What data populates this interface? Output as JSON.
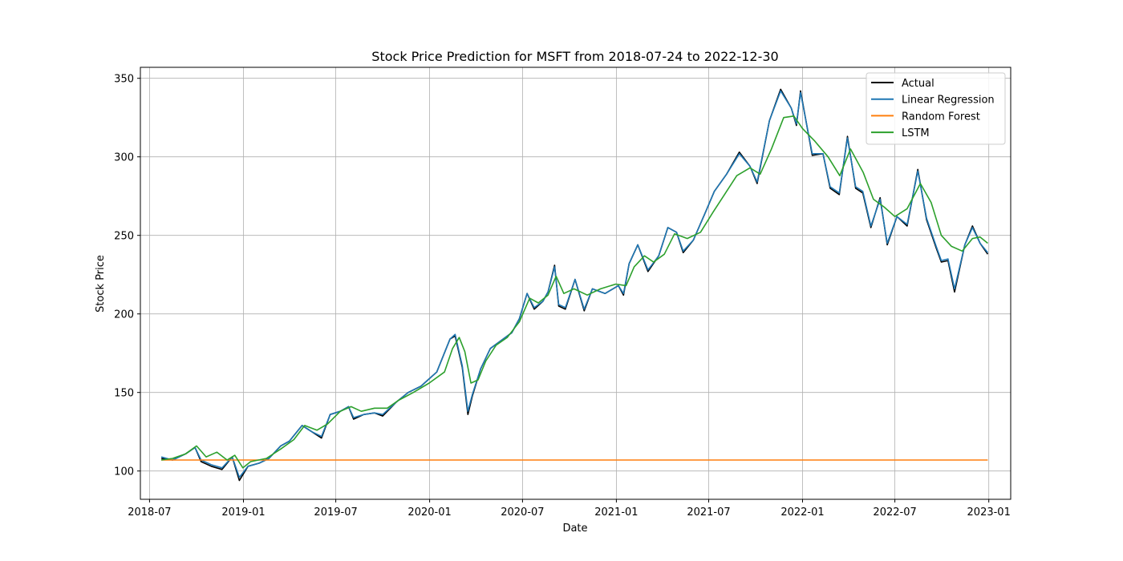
{
  "chart_data": {
    "type": "line",
    "title": "Stock Price Prediction for MSFT from 2018-07-24 to 2022-12-30",
    "xlabel": "Date",
    "ylabel": "Stock Price",
    "x_range": [
      "2018-06-13",
      "2023-02-13"
    ],
    "ylim": [
      82,
      357
    ],
    "x_ticks": [
      {
        "date": "2018-07-01",
        "label": "2018-07"
      },
      {
        "date": "2019-01-01",
        "label": "2019-01"
      },
      {
        "date": "2019-07-01",
        "label": "2019-07"
      },
      {
        "date": "2020-01-01",
        "label": "2020-01"
      },
      {
        "date": "2020-07-01",
        "label": "2020-07"
      },
      {
        "date": "2021-01-01",
        "label": "2021-01"
      },
      {
        "date": "2021-07-01",
        "label": "2021-07"
      },
      {
        "date": "2022-01-01",
        "label": "2022-01"
      },
      {
        "date": "2022-07-01",
        "label": "2022-07"
      },
      {
        "date": "2023-01-01",
        "label": "2023-01"
      }
    ],
    "y_ticks": [
      100,
      150,
      200,
      250,
      300,
      350
    ],
    "grid": true,
    "legend_position": "top-right",
    "series": [
      {
        "name": "Actual",
        "color": "#000000",
        "points": [
          [
            "2018-07-24",
            108
          ],
          [
            "2018-08-15",
            107
          ],
          [
            "2018-09-10",
            111
          ],
          [
            "2018-09-28",
            115
          ],
          [
            "2018-10-10",
            106
          ],
          [
            "2018-10-30",
            103
          ],
          [
            "2018-11-20",
            101
          ],
          [
            "2018-12-10",
            109
          ],
          [
            "2018-12-24",
            94
          ],
          [
            "2019-01-10",
            103
          ],
          [
            "2019-02-01",
            105
          ],
          [
            "2019-02-20",
            108
          ],
          [
            "2019-03-15",
            116
          ],
          [
            "2019-04-01",
            119
          ],
          [
            "2019-04-26",
            129
          ],
          [
            "2019-05-15",
            125
          ],
          [
            "2019-06-03",
            121
          ],
          [
            "2019-06-20",
            136
          ],
          [
            "2019-07-10",
            138
          ],
          [
            "2019-07-26",
            141
          ],
          [
            "2019-08-05",
            133
          ],
          [
            "2019-08-25",
            136
          ],
          [
            "2019-09-15",
            137
          ],
          [
            "2019-10-01",
            135
          ],
          [
            "2019-10-28",
            144
          ],
          [
            "2019-11-20",
            150
          ],
          [
            "2019-12-15",
            154
          ],
          [
            "2020-01-15",
            163
          ],
          [
            "2020-02-10",
            184
          ],
          [
            "2020-02-20",
            186
          ],
          [
            "2020-03-05",
            166
          ],
          [
            "2020-03-16",
            136
          ],
          [
            "2020-03-25",
            148
          ],
          [
            "2020-04-10",
            165
          ],
          [
            "2020-04-29",
            178
          ],
          [
            "2020-05-20",
            183
          ],
          [
            "2020-06-10",
            188
          ],
          [
            "2020-06-25",
            197
          ],
          [
            "2020-07-10",
            213
          ],
          [
            "2020-07-24",
            203
          ],
          [
            "2020-08-10",
            208
          ],
          [
            "2020-08-20",
            214
          ],
          [
            "2020-09-02",
            231
          ],
          [
            "2020-09-10",
            205
          ],
          [
            "2020-09-23",
            203
          ],
          [
            "2020-10-12",
            222
          ],
          [
            "2020-10-30",
            202
          ],
          [
            "2020-11-15",
            216
          ],
          [
            "2020-12-10",
            213
          ],
          [
            "2021-01-05",
            218
          ],
          [
            "2021-01-15",
            212
          ],
          [
            "2021-01-26",
            232
          ],
          [
            "2021-02-12",
            244
          ],
          [
            "2021-03-04",
            227
          ],
          [
            "2021-03-25",
            237
          ],
          [
            "2021-04-12",
            255
          ],
          [
            "2021-04-29",
            252
          ],
          [
            "2021-05-12",
            239
          ],
          [
            "2021-06-01",
            247
          ],
          [
            "2021-06-25",
            265
          ],
          [
            "2021-07-12",
            278
          ],
          [
            "2021-08-05",
            289
          ],
          [
            "2021-08-30",
            303
          ],
          [
            "2021-09-20",
            294
          ],
          [
            "2021-10-04",
            283
          ],
          [
            "2021-10-28",
            323
          ],
          [
            "2021-11-19",
            343
          ],
          [
            "2021-12-10",
            331
          ],
          [
            "2021-12-20",
            320
          ],
          [
            "2021-12-28",
            342
          ],
          [
            "2022-01-20",
            301
          ],
          [
            "2022-02-10",
            302
          ],
          [
            "2022-02-24",
            280
          ],
          [
            "2022-03-14",
            276
          ],
          [
            "2022-03-30",
            313
          ],
          [
            "2022-04-15",
            280
          ],
          [
            "2022-04-29",
            277
          ],
          [
            "2022-05-15",
            255
          ],
          [
            "2022-06-02",
            274
          ],
          [
            "2022-06-16",
            244
          ],
          [
            "2022-07-05",
            262
          ],
          [
            "2022-07-25",
            256
          ],
          [
            "2022-08-15",
            292
          ],
          [
            "2022-09-01",
            260
          ],
          [
            "2022-09-20",
            242
          ],
          [
            "2022-09-30",
            233
          ],
          [
            "2022-10-13",
            234
          ],
          [
            "2022-10-26",
            214
          ],
          [
            "2022-11-15",
            244
          ],
          [
            "2022-11-30",
            256
          ],
          [
            "2022-12-15",
            245
          ],
          [
            "2022-12-30",
            238
          ]
        ]
      },
      {
        "name": "Linear Regression",
        "color": "#1f77b4",
        "points": [
          [
            "2018-07-24",
            109
          ],
          [
            "2018-08-15",
            107
          ],
          [
            "2018-09-10",
            111
          ],
          [
            "2018-09-28",
            115
          ],
          [
            "2018-10-10",
            107
          ],
          [
            "2018-10-30",
            104
          ],
          [
            "2018-11-20",
            102
          ],
          [
            "2018-12-10",
            109
          ],
          [
            "2018-12-24",
            96
          ],
          [
            "2019-01-10",
            103
          ],
          [
            "2019-02-01",
            105
          ],
          [
            "2019-02-20",
            108
          ],
          [
            "2019-03-15",
            116
          ],
          [
            "2019-04-01",
            119
          ],
          [
            "2019-04-26",
            129
          ],
          [
            "2019-05-15",
            125
          ],
          [
            "2019-06-03",
            122
          ],
          [
            "2019-06-20",
            136
          ],
          [
            "2019-07-10",
            138
          ],
          [
            "2019-07-26",
            141
          ],
          [
            "2019-08-05",
            134
          ],
          [
            "2019-08-25",
            136
          ],
          [
            "2019-09-15",
            137
          ],
          [
            "2019-10-01",
            136
          ],
          [
            "2019-10-28",
            144
          ],
          [
            "2019-11-20",
            150
          ],
          [
            "2019-12-15",
            154
          ],
          [
            "2020-01-15",
            163
          ],
          [
            "2020-02-10",
            184
          ],
          [
            "2020-02-20",
            187
          ],
          [
            "2020-03-05",
            167
          ],
          [
            "2020-03-16",
            138
          ],
          [
            "2020-03-25",
            149
          ],
          [
            "2020-04-10",
            165
          ],
          [
            "2020-04-29",
            178
          ],
          [
            "2020-05-20",
            183
          ],
          [
            "2020-06-10",
            188
          ],
          [
            "2020-06-25",
            197
          ],
          [
            "2020-07-10",
            213
          ],
          [
            "2020-07-24",
            204
          ],
          [
            "2020-08-10",
            208
          ],
          [
            "2020-08-20",
            214
          ],
          [
            "2020-09-02",
            230
          ],
          [
            "2020-09-10",
            206
          ],
          [
            "2020-09-23",
            204
          ],
          [
            "2020-10-12",
            222
          ],
          [
            "2020-10-30",
            203
          ],
          [
            "2020-11-15",
            216
          ],
          [
            "2020-12-10",
            213
          ],
          [
            "2021-01-05",
            218
          ],
          [
            "2021-01-15",
            213
          ],
          [
            "2021-01-26",
            232
          ],
          [
            "2021-02-12",
            244
          ],
          [
            "2021-03-04",
            228
          ],
          [
            "2021-03-25",
            237
          ],
          [
            "2021-04-12",
            255
          ],
          [
            "2021-04-29",
            252
          ],
          [
            "2021-05-12",
            240
          ],
          [
            "2021-06-01",
            247
          ],
          [
            "2021-06-25",
            265
          ],
          [
            "2021-07-12",
            278
          ],
          [
            "2021-08-05",
            289
          ],
          [
            "2021-08-30",
            302
          ],
          [
            "2021-09-20",
            294
          ],
          [
            "2021-10-04",
            284
          ],
          [
            "2021-10-28",
            323
          ],
          [
            "2021-11-19",
            342
          ],
          [
            "2021-12-10",
            331
          ],
          [
            "2021-12-20",
            321
          ],
          [
            "2021-12-28",
            341
          ],
          [
            "2022-01-20",
            302
          ],
          [
            "2022-02-10",
            302
          ],
          [
            "2022-02-24",
            281
          ],
          [
            "2022-03-14",
            277
          ],
          [
            "2022-03-30",
            312
          ],
          [
            "2022-04-15",
            281
          ],
          [
            "2022-04-29",
            278
          ],
          [
            "2022-05-15",
            256
          ],
          [
            "2022-06-02",
            273
          ],
          [
            "2022-06-16",
            245
          ],
          [
            "2022-07-05",
            262
          ],
          [
            "2022-07-25",
            257
          ],
          [
            "2022-08-15",
            291
          ],
          [
            "2022-09-01",
            261
          ],
          [
            "2022-09-20",
            243
          ],
          [
            "2022-09-30",
            234
          ],
          [
            "2022-10-13",
            235
          ],
          [
            "2022-10-26",
            216
          ],
          [
            "2022-11-15",
            244
          ],
          [
            "2022-11-30",
            255
          ],
          [
            "2022-12-15",
            245
          ],
          [
            "2022-12-30",
            239
          ]
        ]
      },
      {
        "name": "Random Forest",
        "color": "#ff7f0e",
        "points": [
          [
            "2018-07-24",
            107
          ],
          [
            "2018-12-24",
            107
          ],
          [
            "2019-06-01",
            107
          ],
          [
            "2020-01-01",
            107
          ],
          [
            "2020-07-01",
            107
          ],
          [
            "2021-01-01",
            107
          ],
          [
            "2021-07-01",
            107
          ],
          [
            "2022-01-01",
            107
          ],
          [
            "2022-07-01",
            107
          ],
          [
            "2022-12-30",
            107
          ]
        ]
      },
      {
        "name": "LSTM",
        "color": "#2ca02c",
        "points": [
          [
            "2018-07-24",
            107
          ],
          [
            "2018-08-15",
            108
          ],
          [
            "2018-09-10",
            111
          ],
          [
            "2018-10-01",
            116
          ],
          [
            "2018-10-20",
            109
          ],
          [
            "2018-11-10",
            112
          ],
          [
            "2018-11-30",
            107
          ],
          [
            "2018-12-15",
            110
          ],
          [
            "2018-12-31",
            102
          ],
          [
            "2019-01-15",
            106
          ],
          [
            "2019-02-15",
            108
          ],
          [
            "2019-03-15",
            114
          ],
          [
            "2019-04-10",
            120
          ],
          [
            "2019-05-01",
            129
          ],
          [
            "2019-05-25",
            126
          ],
          [
            "2019-06-15",
            130
          ],
          [
            "2019-07-10",
            138
          ],
          [
            "2019-07-31",
            141
          ],
          [
            "2019-08-20",
            138
          ],
          [
            "2019-09-15",
            140
          ],
          [
            "2019-10-10",
            140
          ],
          [
            "2019-11-01",
            145
          ],
          [
            "2019-11-30",
            150
          ],
          [
            "2019-12-31",
            156
          ],
          [
            "2020-01-30",
            163
          ],
          [
            "2020-02-15",
            178
          ],
          [
            "2020-02-28",
            185
          ],
          [
            "2020-03-10",
            176
          ],
          [
            "2020-03-22",
            156
          ],
          [
            "2020-04-05",
            158
          ],
          [
            "2020-04-20",
            170
          ],
          [
            "2020-05-10",
            180
          ],
          [
            "2020-06-01",
            185
          ],
          [
            "2020-06-25",
            195
          ],
          [
            "2020-07-15",
            210
          ],
          [
            "2020-08-01",
            207
          ],
          [
            "2020-08-20",
            212
          ],
          [
            "2020-09-05",
            224
          ],
          [
            "2020-09-20",
            213
          ],
          [
            "2020-10-10",
            216
          ],
          [
            "2020-11-05",
            212
          ],
          [
            "2020-12-01",
            216
          ],
          [
            "2020-12-31",
            219
          ],
          [
            "2021-01-20",
            218
          ],
          [
            "2021-02-05",
            230
          ],
          [
            "2021-02-25",
            237
          ],
          [
            "2021-03-15",
            233
          ],
          [
            "2021-04-05",
            238
          ],
          [
            "2021-04-25",
            251
          ],
          [
            "2021-05-20",
            248
          ],
          [
            "2021-06-15",
            252
          ],
          [
            "2021-07-10",
            265
          ],
          [
            "2021-08-01",
            276
          ],
          [
            "2021-08-25",
            288
          ],
          [
            "2021-09-20",
            293
          ],
          [
            "2021-10-10",
            289
          ],
          [
            "2021-11-01",
            305
          ],
          [
            "2021-11-25",
            325
          ],
          [
            "2021-12-15",
            326
          ],
          [
            "2022-01-01",
            318
          ],
          [
            "2022-01-25",
            310
          ],
          [
            "2022-02-20",
            300
          ],
          [
            "2022-03-15",
            288
          ],
          [
            "2022-04-05",
            305
          ],
          [
            "2022-04-30",
            290
          ],
          [
            "2022-05-20",
            273
          ],
          [
            "2022-06-10",
            268
          ],
          [
            "2022-07-01",
            262
          ],
          [
            "2022-07-25",
            267
          ],
          [
            "2022-08-20",
            283
          ],
          [
            "2022-09-10",
            271
          ],
          [
            "2022-09-30",
            250
          ],
          [
            "2022-10-20",
            243
          ],
          [
            "2022-11-10",
            240
          ],
          [
            "2022-11-30",
            248
          ],
          [
            "2022-12-15",
            249
          ],
          [
            "2022-12-30",
            245
          ]
        ]
      }
    ]
  }
}
